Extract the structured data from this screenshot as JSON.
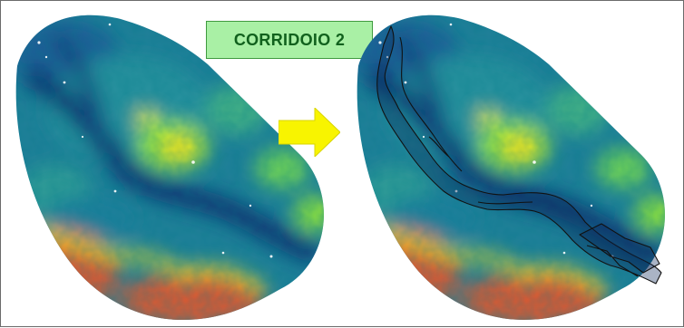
{
  "title": "CORRIDOIO 2",
  "panels": [
    {
      "name": "terrain-map-before"
    },
    {
      "name": "terrain-map-with-corridor"
    }
  ],
  "colors": {
    "arrow": "#f8f400",
    "title_bg": "#a9f0a5",
    "title_text": "#11611d",
    "corridor_outline": "#111111",
    "terrain_low": "#0c3672",
    "terrain_mid": "#1d8a9a",
    "terrain_high": "#8be03c",
    "terrain_peak": "#f4e21c",
    "terrain_edge": "#d45a35"
  }
}
